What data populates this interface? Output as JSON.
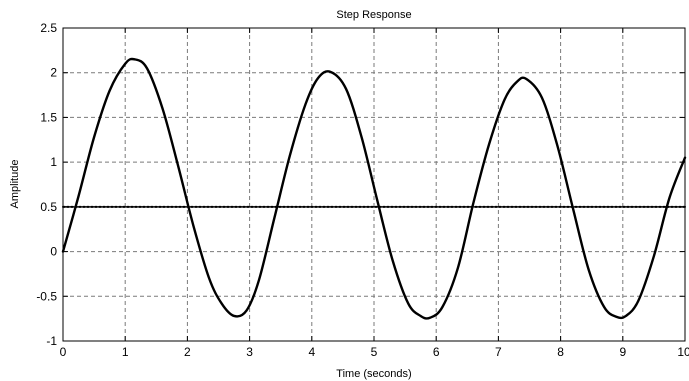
{
  "chart_data": {
    "type": "line",
    "title": "Step Response",
    "xlabel": "Time (seconds)",
    "ylabel": "Amplitude",
    "xlim": [
      0,
      10
    ],
    "ylim": [
      -1,
      2.5
    ],
    "xticks": [
      0,
      1,
      2,
      3,
      4,
      5,
      6,
      7,
      8,
      9,
      10
    ],
    "yticks": [
      -1,
      -0.5,
      0,
      0.5,
      1,
      1.5,
      2,
      2.5
    ],
    "xtick_labels": [
      "0",
      "1",
      "2",
      "3",
      "4",
      "5",
      "6",
      "7",
      "8",
      "9",
      "10"
    ],
    "ytick_labels": [
      "-1",
      "-0.5",
      "0",
      "0.5",
      "1",
      "1.5",
      "2",
      "2.5"
    ],
    "grid": true,
    "series": [
      {
        "style": "solid",
        "color": "#000000",
        "x": [
          0,
          0.25,
          0.5,
          0.75,
          1.0,
          1.15,
          1.35,
          1.6,
          1.85,
          2.1,
          2.35,
          2.55,
          2.75,
          2.95,
          3.15,
          3.4,
          3.65,
          3.9,
          4.1,
          4.3,
          4.55,
          4.8,
          5.05,
          5.3,
          5.55,
          5.75,
          5.9,
          6.1,
          6.35,
          6.6,
          6.85,
          7.1,
          7.3,
          7.45,
          7.7,
          7.95,
          8.2,
          8.45,
          8.7,
          8.9,
          9.05,
          9.25,
          9.5,
          9.75,
          10.0
        ],
        "y": [
          0,
          0.62,
          1.28,
          1.8,
          2.1,
          2.15,
          2.05,
          1.6,
          0.96,
          0.28,
          -0.3,
          -0.58,
          -0.72,
          -0.66,
          -0.32,
          0.38,
          1.08,
          1.65,
          1.94,
          2.01,
          1.82,
          1.28,
          0.58,
          -0.1,
          -0.58,
          -0.72,
          -0.74,
          -0.62,
          -0.18,
          0.55,
          1.2,
          1.7,
          1.9,
          1.93,
          1.72,
          1.18,
          0.48,
          -0.2,
          -0.62,
          -0.73,
          -0.72,
          -0.55,
          -0.05,
          0.6,
          1.05
        ]
      },
      {
        "style": "dotted",
        "color": "#000000",
        "x": [
          0,
          10
        ],
        "y": [
          0.5,
          0.5
        ]
      }
    ]
  }
}
